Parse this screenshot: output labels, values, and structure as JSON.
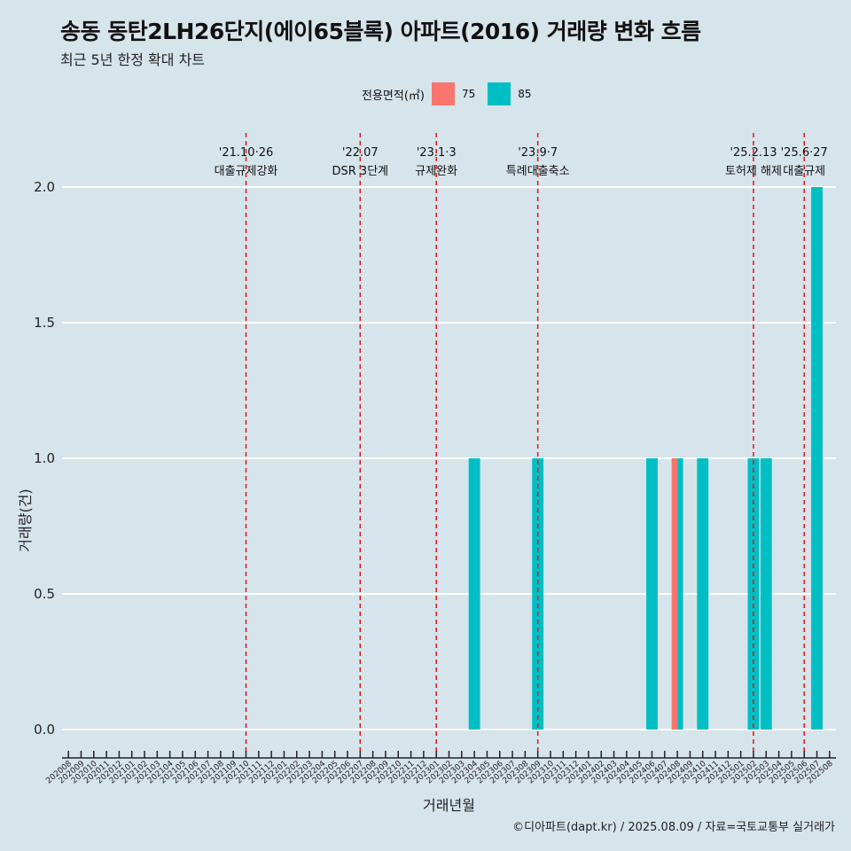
{
  "header": {
    "title": "송동 동탄2LH26단지(에이65블록) 아파트(2016) 거래량 변화 흐름",
    "subtitle": "최근 5년 한정 확대 차트"
  },
  "legend": {
    "title": "전용면적(㎡)",
    "items": [
      {
        "label": "75",
        "color": "#f8766d"
      },
      {
        "label": "85",
        "color": "#00bfc4"
      }
    ]
  },
  "caption": "©디아파트(dapt.kr) / 2025.08.09 / 자료=국토교통부 실거래가",
  "chart_data": {
    "type": "bar",
    "title": "송동 동탄2LH26단지(에이65블록) 아파트(2016) 거래량 변화 흐름",
    "subtitle": "최근 5년 한정 확대 차트",
    "xlabel": "거래년월",
    "ylabel": "거래량(건)",
    "ylim": [
      0,
      2
    ],
    "yticks": [
      "0.0",
      "0.5",
      "1.0",
      "1.5",
      "2.0"
    ],
    "grid": "horizontal",
    "legend_position": "top",
    "categories": [
      "202008",
      "202009",
      "202010",
      "202011",
      "202012",
      "202101",
      "202102",
      "202103",
      "202104",
      "202105",
      "202106",
      "202107",
      "202108",
      "202109",
      "202110",
      "202111",
      "202112",
      "202201",
      "202202",
      "202203",
      "202204",
      "202205",
      "202206",
      "202207",
      "202208",
      "202209",
      "202210",
      "202211",
      "202212",
      "202301",
      "202302",
      "202303",
      "202304",
      "202305",
      "202306",
      "202307",
      "202308",
      "202309",
      "202310",
      "202311",
      "202312",
      "202401",
      "202402",
      "202403",
      "202404",
      "202405",
      "202406",
      "202407",
      "202408",
      "202409",
      "202410",
      "202411",
      "202412",
      "202501",
      "202502",
      "202503",
      "202504",
      "202505",
      "202506",
      "202507",
      "202508"
    ],
    "series": [
      {
        "name": "75",
        "color": "#f8766d",
        "points": [
          {
            "x": "202408",
            "y": 1
          }
        ]
      },
      {
        "name": "85",
        "color": "#00bfc4",
        "points": [
          {
            "x": "202304",
            "y": 1
          },
          {
            "x": "202309",
            "y": 1
          },
          {
            "x": "202406",
            "y": 1
          },
          {
            "x": "202408",
            "y": 1
          },
          {
            "x": "202410",
            "y": 1
          },
          {
            "x": "202502",
            "y": 1
          },
          {
            "x": "202503",
            "y": 1
          },
          {
            "x": "202507",
            "y": 2
          }
        ]
      }
    ],
    "events": [
      {
        "date": "'21.10·26",
        "label": "대출규제강화",
        "x": "202110"
      },
      {
        "date": "'22.07",
        "label": "DSR 3단계",
        "x": "202207"
      },
      {
        "date": "'23.1·3",
        "label": "규제완화",
        "x": "202301"
      },
      {
        "date": "'23.9·7",
        "label": "특례대출축소",
        "x": "202309"
      },
      {
        "date": "'25.2.13",
        "label": "토허제 해제",
        "x": "202502"
      },
      {
        "date": "'25.6·27",
        "label": "대출규제",
        "x": "202506"
      }
    ]
  }
}
